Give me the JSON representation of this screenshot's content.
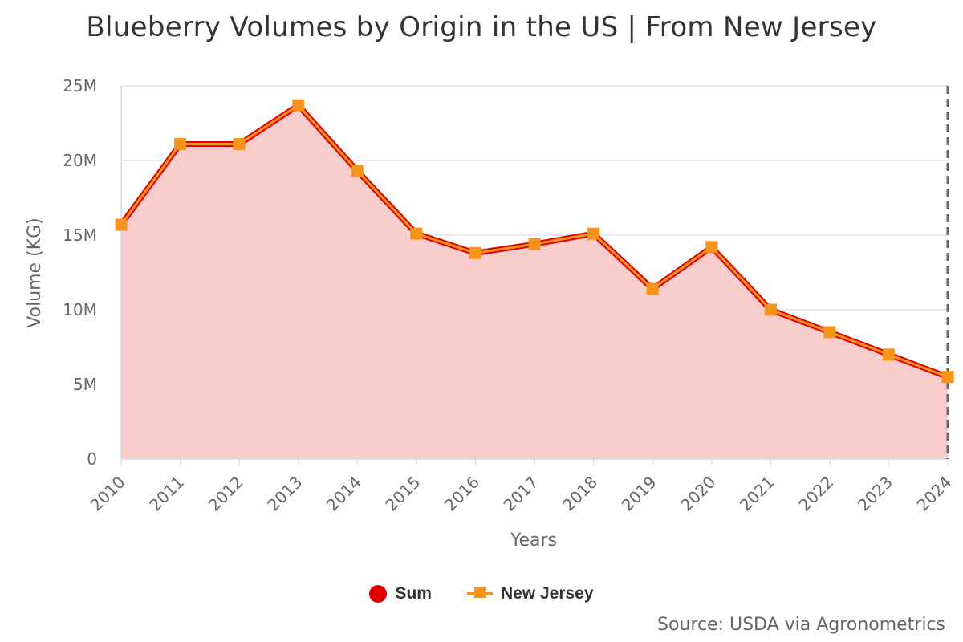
{
  "title": "Blueberry Volumes by Origin in the US | From New Jersey",
  "source": "Source: USDA via Agronometrics",
  "colors": {
    "sum": "#e00000",
    "new_jersey": "#f7941d",
    "area_fill": "#f9cccc",
    "grid": "#d6d6d6",
    "axis": "#ccd6eb",
    "dashed_line": "#666666"
  },
  "legend": [
    {
      "label": "Sum",
      "marker": "circle",
      "color": "#e00000"
    },
    {
      "label": "New Jersey",
      "marker": "square-line",
      "color": "#f7941d"
    }
  ],
  "chart_data": {
    "type": "area",
    "title": "Blueberry Volumes by Origin in the US | From New Jersey",
    "xlabel": "Years",
    "ylabel": "Volume (KG)",
    "ylim": [
      0,
      25000000
    ],
    "y_ticks": [
      0,
      5000000,
      10000000,
      15000000,
      20000000,
      25000000
    ],
    "y_tick_labels": [
      "0",
      "5M",
      "10M",
      "15M",
      "20M",
      "25M"
    ],
    "categories": [
      "2010",
      "2011",
      "2012",
      "2013",
      "2014",
      "2015",
      "2016",
      "2017",
      "2018",
      "2019",
      "2020",
      "2021",
      "2022",
      "2023",
      "2024"
    ],
    "series": [
      {
        "name": "Sum",
        "type": "area",
        "values": [
          15700000,
          21100000,
          21100000,
          23700000,
          19300000,
          15100000,
          13800000,
          14400000,
          15100000,
          11400000,
          14200000,
          10000000,
          8500000,
          7000000,
          5500000
        ]
      },
      {
        "name": "New Jersey",
        "type": "line",
        "values": [
          15700000,
          21100000,
          21100000,
          23700000,
          19300000,
          15100000,
          13800000,
          14400000,
          15100000,
          11400000,
          14200000,
          10000000,
          8500000,
          7000000,
          5500000
        ]
      }
    ],
    "grid": true,
    "legend_position": "bottom-center",
    "marker_dashed_line_at": "2024"
  }
}
